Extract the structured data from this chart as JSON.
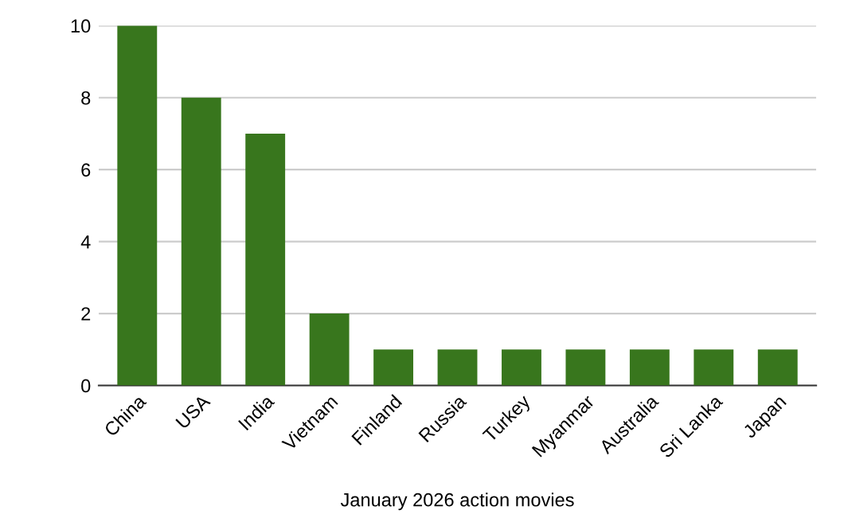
{
  "chart_data": {
    "type": "bar",
    "xlabel": "January 2026 action movies",
    "categories": [
      "China",
      "USA",
      "India",
      "Vietnam",
      "Finland",
      "Russia",
      "Turkey",
      "Myanmar",
      "Australia",
      "Sri Lanka",
      "Japan"
    ],
    "values": [
      10,
      8,
      7,
      2,
      1,
      1,
      1,
      1,
      1,
      1,
      1
    ],
    "color": "#38761d",
    "ylim": [
      0,
      10
    ],
    "yticks": [
      0,
      2,
      4,
      6,
      8,
      10
    ],
    "grid": "y",
    "legend": false
  }
}
